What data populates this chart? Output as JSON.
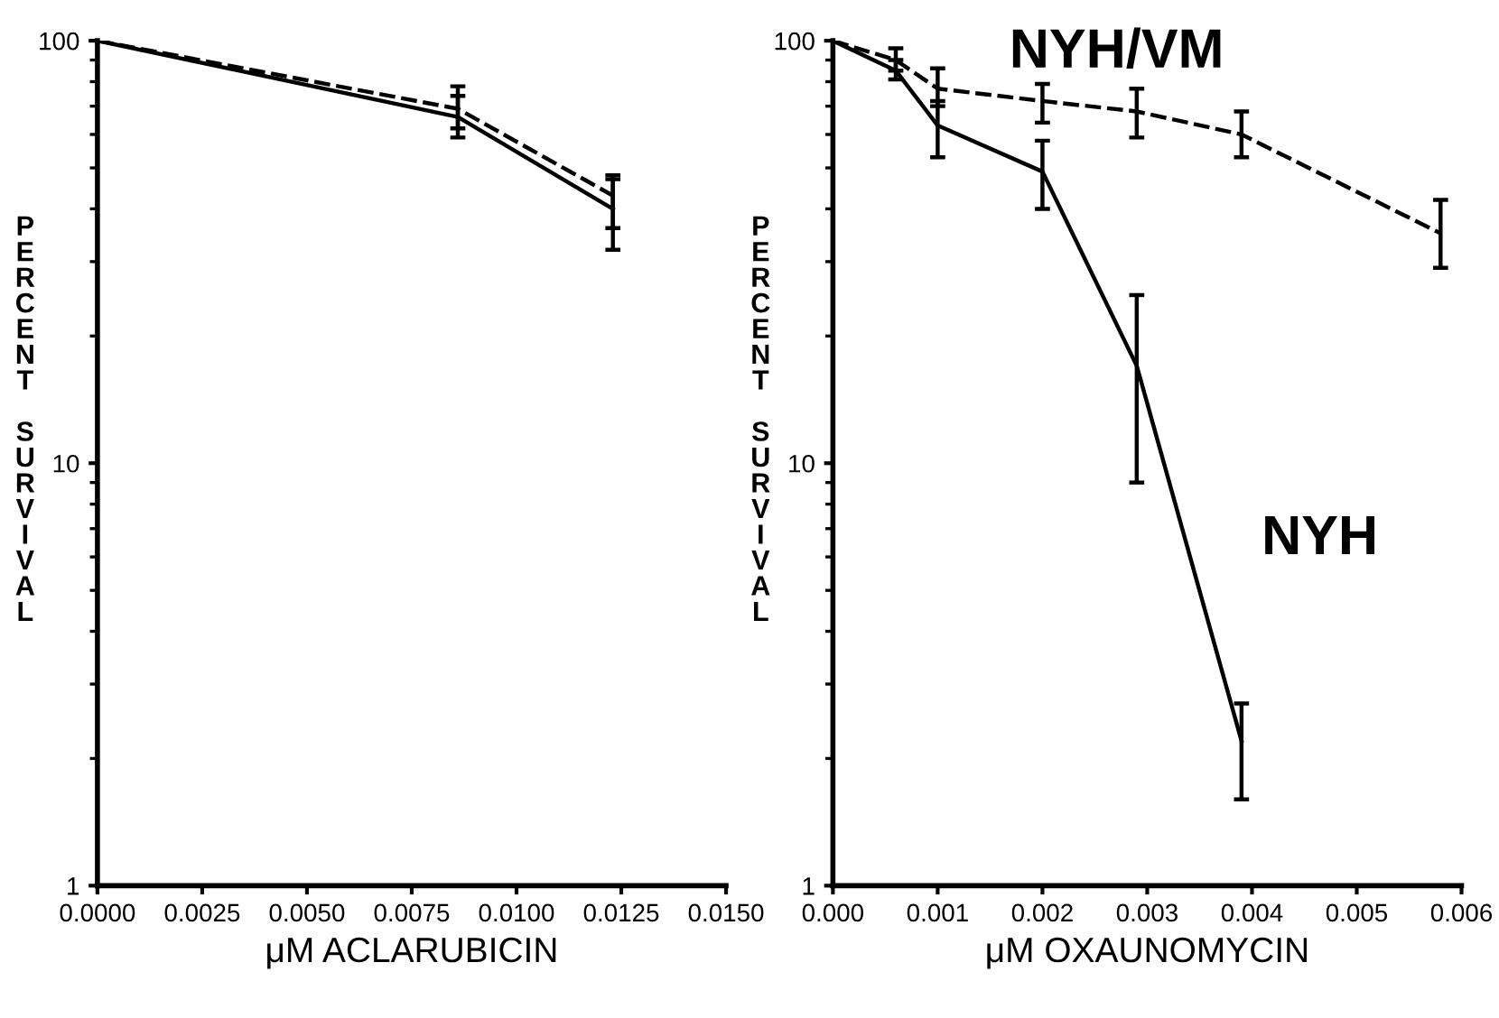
{
  "chart_data": [
    {
      "type": "line",
      "xlabel": "μM ACLARUBICIN",
      "ylabel": "PERCENT SURVIVAL",
      "log": "y",
      "grid": false,
      "marker": "none",
      "xlim": [
        0,
        0.015
      ],
      "xticks": [
        {
          "value": 0,
          "label": "0.0000"
        },
        {
          "value": 0.0025,
          "label": "0.0025"
        },
        {
          "value": 0.005,
          "label": "0.0050"
        },
        {
          "value": 0.0075,
          "label": "0.0075"
        },
        {
          "value": 0.01,
          "label": "0.0100"
        },
        {
          "value": 0.0125,
          "label": "0.0125"
        },
        {
          "value": 0.015,
          "label": "0.0150"
        }
      ],
      "ylim": [
        1,
        100
      ],
      "yticks": [
        1,
        10,
        100
      ],
      "series": [
        {
          "color": "#000000",
          "line_style": "solid",
          "x": [
            0,
            0.0086,
            0.0123
          ],
          "values": [
            100,
            66,
            40
          ],
          "errors": [
            null,
            [
              59,
              74
            ],
            [
              32,
              47
            ]
          ]
        },
        {
          "color": "#000000",
          "line_style": "dashed",
          "x": [
            0,
            0.0086,
            0.0123
          ],
          "values": [
            100,
            69,
            43
          ],
          "errors": [
            null,
            [
              62,
              78
            ],
            [
              36,
              48
            ]
          ]
        }
      ]
    },
    {
      "type": "line",
      "xlabel": "μM OXAUNOMYCIN",
      "ylabel": "PERCENT SURVIVAL",
      "log": "y",
      "grid": false,
      "marker": "none",
      "xlim": [
        0,
        0.006
      ],
      "xticks": [
        {
          "value": 0,
          "label": "0.000"
        },
        {
          "value": 0.001,
          "label": "0.001"
        },
        {
          "value": 0.002,
          "label": "0.002"
        },
        {
          "value": 0.003,
          "label": "0.003"
        },
        {
          "value": 0.004,
          "label": "0.004"
        },
        {
          "value": 0.005,
          "label": "0.005"
        },
        {
          "value": 0.006,
          "label": "0.006"
        }
      ],
      "ylim": [
        1,
        100
      ],
      "yticks": [
        1,
        10,
        100
      ],
      "series": [
        {
          "name": "NYH/VM",
          "color": "#000000",
          "line_style": "dashed",
          "x": [
            0,
            0.0006,
            0.001,
            0.002,
            0.0029,
            0.0039,
            0.0058
          ],
          "values": [
            100,
            90,
            77,
            72,
            68,
            60,
            35
          ],
          "errors": [
            null,
            [
              85,
              96
            ],
            [
              70,
              86
            ],
            [
              64,
              79
            ],
            [
              59,
              77
            ],
            [
              53,
              68
            ],
            [
              29,
              42
            ]
          ]
        },
        {
          "name": "NYH",
          "color": "#000000",
          "line_style": "solid",
          "x": [
            0,
            0.0006,
            0.001,
            0.002,
            0.0029,
            0.0039
          ],
          "values": [
            100,
            85,
            63,
            49,
            17,
            2.2
          ],
          "errors": [
            null,
            [
              81,
              90
            ],
            [
              53,
              72
            ],
            [
              40,
              58
            ],
            [
              9,
              25
            ],
            [
              1.6,
              2.7
            ]
          ]
        }
      ]
    }
  ]
}
